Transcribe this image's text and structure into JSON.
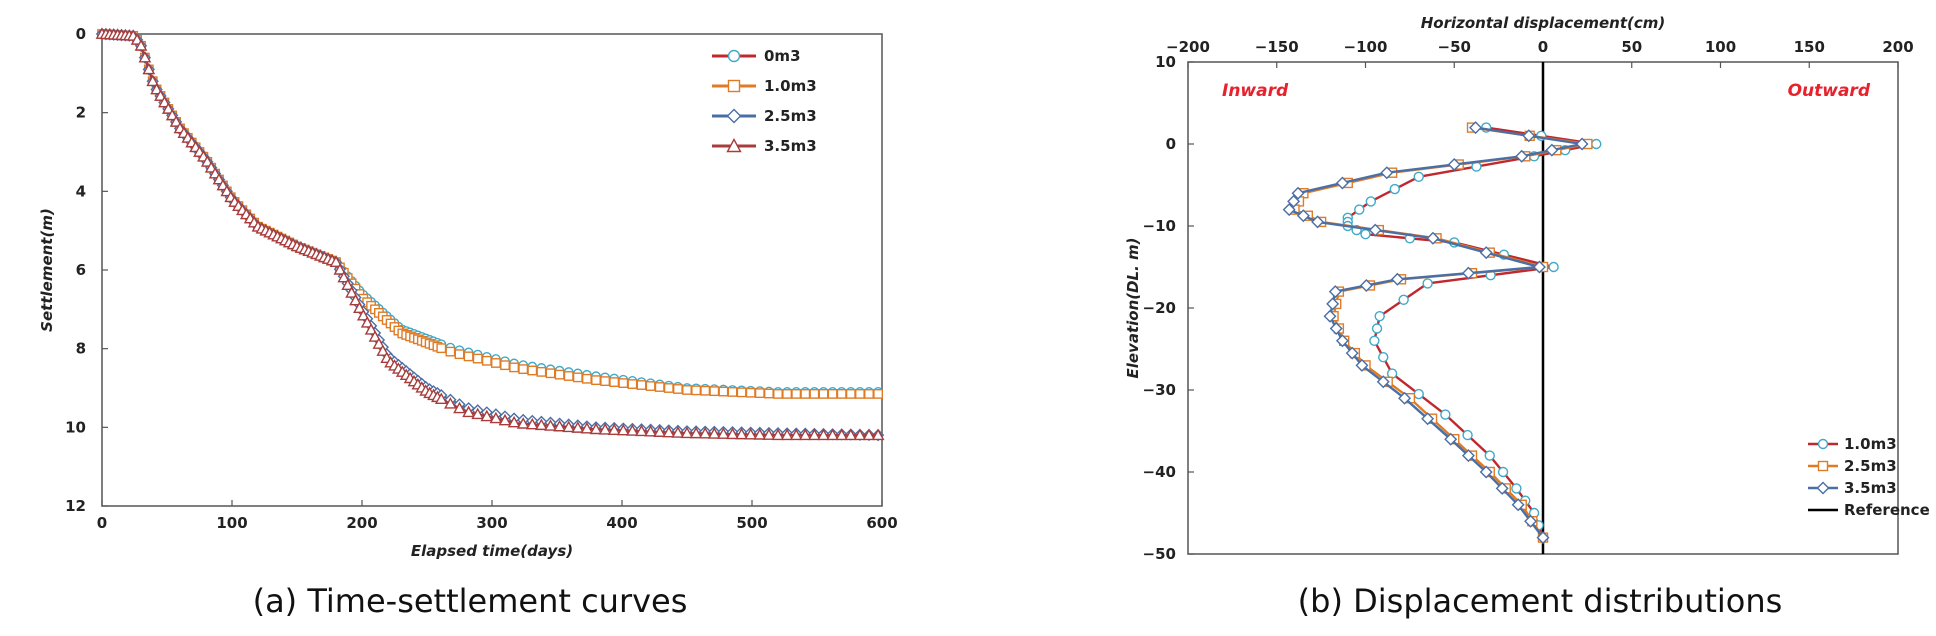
{
  "chart_data": [
    {
      "type": "line",
      "caption": "(a) Time-settlement curves",
      "xlabel": "Elapsed time(days)",
      "ylabel": "Settlement(m)",
      "xlim": [
        0,
        600
      ],
      "ylim": [
        0,
        12
      ],
      "y_inverted": true,
      "xticks": [
        "0",
        "100",
        "200",
        "300",
        "400",
        "500",
        "600"
      ],
      "yticks": [
        "0",
        "2",
        "4",
        "6",
        "8",
        "10",
        "12"
      ],
      "legend_position": "top-right",
      "series": [
        {
          "name": "0m3",
          "color": "#c0282d",
          "marker": "circle",
          "marker_color": "#3fa9c9",
          "x": [
            0,
            25,
            30,
            40,
            60,
            80,
            100,
            120,
            150,
            180,
            200,
            230,
            270,
            320,
            380,
            450,
            520,
            600
          ],
          "y": [
            0,
            0.05,
            0.3,
            1.3,
            2.4,
            3.2,
            4.2,
            4.9,
            5.4,
            5.8,
            6.6,
            7.5,
            8.0,
            8.4,
            8.7,
            9.0,
            9.1,
            9.1
          ]
        },
        {
          "name": "1.0m3",
          "color": "#e07b25",
          "marker": "square",
          "marker_color": "#e07b25",
          "x": [
            0,
            25,
            30,
            40,
            60,
            80,
            100,
            120,
            150,
            180,
            200,
            230,
            270,
            320,
            380,
            450,
            520,
            600
          ],
          "y": [
            0,
            0.05,
            0.3,
            1.3,
            2.4,
            3.2,
            4.2,
            4.9,
            5.4,
            5.8,
            6.7,
            7.6,
            8.1,
            8.5,
            8.8,
            9.05,
            9.15,
            9.15
          ]
        },
        {
          "name": "2.5m3",
          "color": "#4a6fa5",
          "marker": "diamond",
          "marker_color": "#4a6fa5",
          "x": [
            0,
            25,
            30,
            40,
            60,
            80,
            100,
            120,
            150,
            180,
            200,
            220,
            250,
            280,
            320,
            380,
            450,
            520,
            600
          ],
          "y": [
            0,
            0.05,
            0.3,
            1.3,
            2.4,
            3.2,
            4.2,
            4.9,
            5.4,
            5.8,
            7.0,
            8.2,
            9.0,
            9.5,
            9.8,
            10.0,
            10.1,
            10.15,
            10.2
          ]
        },
        {
          "name": "3.5m3",
          "color": "#a83c3c",
          "marker": "triangle",
          "marker_color": "#a83c3c",
          "x": [
            0,
            25,
            30,
            40,
            60,
            80,
            100,
            120,
            150,
            180,
            200,
            220,
            250,
            280,
            320,
            380,
            450,
            520,
            600
          ],
          "y": [
            0,
            0.05,
            0.3,
            1.3,
            2.4,
            3.2,
            4.2,
            4.9,
            5.4,
            5.8,
            7.1,
            8.3,
            9.1,
            9.6,
            9.9,
            10.05,
            10.15,
            10.2,
            10.2
          ]
        }
      ]
    },
    {
      "type": "line",
      "caption": "(b) Displacement distributions",
      "xlabel": "Horizontal displacement(cm)",
      "ylabel": "Elevation(DL. m)",
      "xlim": [
        -200,
        200
      ],
      "ylim": [
        -50,
        10
      ],
      "xticks": [
        "−200",
        "−150",
        "−100",
        "−50",
        "0",
        "50",
        "100",
        "150",
        "200"
      ],
      "yticks": [
        "10",
        "0",
        "−10",
        "−20",
        "−30",
        "−40",
        "−50"
      ],
      "annotations": {
        "left": "Inward",
        "right": "Outward"
      },
      "legend_position": "bottom-right",
      "reference": {
        "name": "Reference",
        "x": 0,
        "color": "#000000"
      },
      "series": [
        {
          "name": "1.0m3",
          "color": "#c0282d",
          "marker": "circle",
          "marker_color": "#3fa9c9",
          "x": [
            -32,
            30,
            -5,
            -70,
            -97,
            -110,
            -110,
            -100,
            -50,
            6,
            -65,
            -92,
            -95,
            -85,
            -55,
            -30,
            -15,
            -5,
            0
          ],
          "y": [
            2,
            0,
            -1.5,
            -4,
            -7,
            -9,
            -10,
            -11,
            -12,
            -15,
            -17,
            -21,
            -24,
            -28,
            -33,
            -38,
            -42,
            -45,
            -48
          ]
        },
        {
          "name": "2.5m3",
          "color": "#e07b25",
          "marker": "square",
          "marker_color": "#e07b25",
          "x": [
            -40,
            25,
            -10,
            -85,
            -135,
            -140,
            -125,
            -60,
            0,
            -80,
            -115,
            -118,
            -112,
            -100,
            -75,
            -50,
            -30,
            -12,
            0
          ],
          "y": [
            2,
            0,
            -1.5,
            -3.5,
            -6,
            -8,
            -9.5,
            -11.5,
            -15,
            -16.5,
            -18,
            -21,
            -24,
            -27,
            -31,
            -36,
            -40,
            -44,
            -48
          ]
        },
        {
          "name": "3.5m3",
          "color": "#4a6fa5",
          "marker": "diamond",
          "marker_color": "#4a6fa5",
          "x": [
            -38,
            22,
            -12,
            -88,
            -138,
            -143,
            -127,
            -62,
            -2,
            -82,
            -117,
            -120,
            -113,
            -102,
            -78,
            -52,
            -32,
            -14,
            0
          ],
          "y": [
            2,
            0,
            -1.5,
            -3.5,
            -6,
            -8,
            -9.5,
            -11.5,
            -15,
            -16.5,
            -18,
            -21,
            -24,
            -27,
            -31,
            -36,
            -40,
            -44,
            -48
          ]
        }
      ]
    }
  ]
}
